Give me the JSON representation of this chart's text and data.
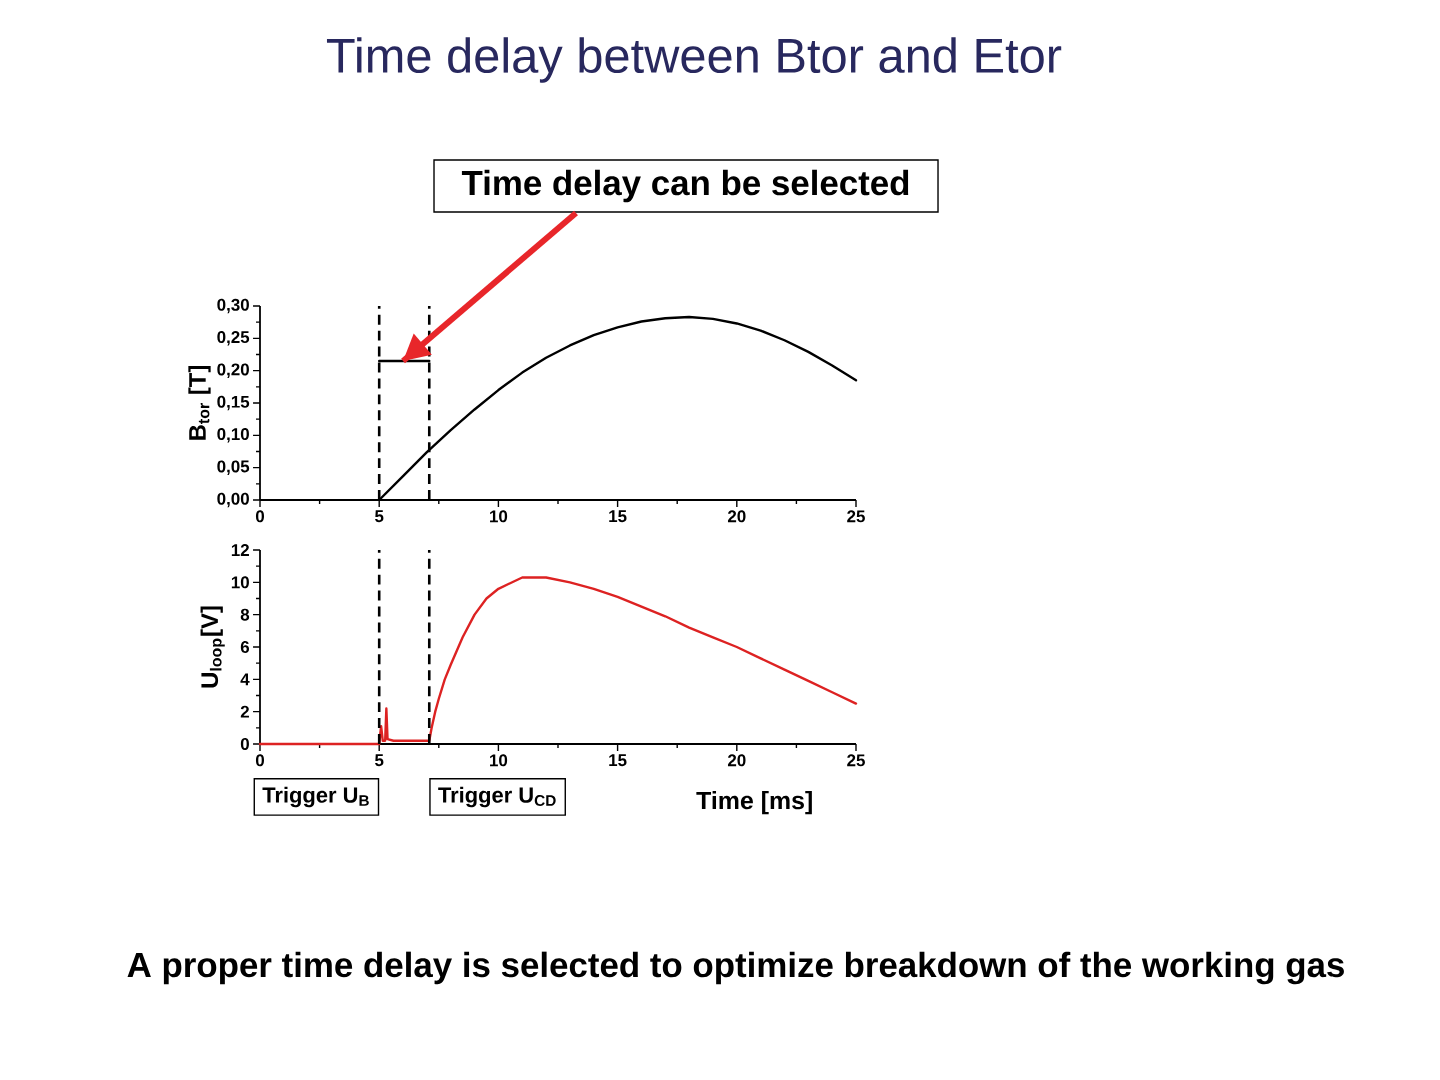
{
  "chart_data": [
    {
      "type": "line",
      "title": "Time delay between Btor and Etor",
      "ylabel": "B$_{tor}$ [T]",
      "x": [
        5,
        6,
        7,
        8,
        9,
        10,
        11,
        12,
        13,
        14,
        15,
        16,
        17,
        18,
        19,
        20,
        21,
        22,
        23,
        24,
        25
      ],
      "series": [
        {
          "color": "#000000",
          "values": [
            0,
            0.037,
            0.074,
            0.108,
            0.14,
            0.17,
            0.197,
            0.22,
            0.239,
            0.255,
            0.267,
            0.276,
            0.281,
            0.283,
            0.28,
            0.273,
            0.262,
            0.247,
            0.229,
            0.208,
            0.185
          ]
        },
        {
          "color": "#000000",
          "x": [
            5,
            7.1
          ],
          "values": [
            0.215,
            0.215
          ]
        }
      ],
      "xlim": [
        0,
        25
      ],
      "xticks": [
        0,
        5,
        10,
        15,
        20,
        25
      ],
      "ylim": [
        0,
        0.3
      ],
      "yticks": [
        {
          "value": 0,
          "label": "0,00"
        },
        {
          "value": 0.05,
          "label": "0,05"
        },
        {
          "value": 0.1,
          "label": "0,10"
        },
        {
          "value": 0.15,
          "label": "0,15"
        },
        {
          "value": 0.2,
          "label": "0,20"
        },
        {
          "value": 0.25,
          "label": "0,25"
        },
        {
          "value": 0.3,
          "label": "0,30"
        }
      ],
      "ref_lines": [
        {
          "axis": "x",
          "value": 5,
          "color": "#000000",
          "line_style": "dashed"
        },
        {
          "axis": "x",
          "value": 7.1,
          "color": "#000000",
          "line_style": "dashed"
        }
      ],
      "annotations": [
        {
          "text": "Time delay can be selected",
          "x": 6,
          "y": 0.215
        }
      ]
    },
    {
      "type": "line",
      "xlabel": "Time [ms]",
      "ylabel": "U$_{loop}$[V]",
      "x": [
        0,
        5,
        5.08,
        5.15,
        5.25,
        5.3,
        5.35,
        5.6,
        7.1,
        7.2,
        7.35,
        7.5,
        7.75,
        8,
        8.5,
        9,
        9.5,
        10,
        11,
        12,
        13,
        14,
        15,
        16,
        17,
        18,
        19,
        20,
        21,
        22,
        23,
        24,
        25
      ],
      "series": [
        {
          "color": "#dd2222",
          "values": [
            0,
            0,
            1.1,
            0.2,
            0.2,
            2.2,
            0.3,
            0.2,
            0.2,
            1.0,
            2.0,
            2.8,
            4.0,
            4.9,
            6.6,
            8.0,
            9.0,
            9.6,
            10.3,
            10.3,
            10.0,
            9.6,
            9.1,
            8.5,
            7.9,
            7.2,
            6.6,
            6.0,
            5.3,
            4.6,
            3.9,
            3.2,
            2.5
          ]
        }
      ],
      "xlim": [
        0,
        25
      ],
      "xticks": [
        0,
        5,
        10,
        15,
        20,
        25
      ],
      "ylim": [
        0,
        12
      ],
      "yticks": [
        0,
        2,
        4,
        6,
        8,
        10,
        12
      ],
      "ref_lines": [
        {
          "axis": "x",
          "value": 5,
          "label": "Trigger U$_{B}$",
          "color": "#000000",
          "line_style": "dashed"
        },
        {
          "axis": "x",
          "value": 7.1,
          "label": "Trigger U$_{CD}$",
          "color": "#000000",
          "line_style": "dashed"
        }
      ],
      "annotations": [
        "A proper time delay is selected to optimize breakdown of the working gas"
      ]
    }
  ]
}
